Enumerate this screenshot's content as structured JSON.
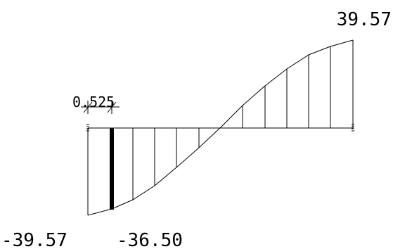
{
  "diagram": {
    "labels": {
      "max_value": "39.57",
      "min_value": "-39.57",
      "section_value": "-36.50",
      "section_distance": "0.525"
    },
    "colors": {
      "line": "#000000",
      "background": "#ffffff"
    }
  }
}
